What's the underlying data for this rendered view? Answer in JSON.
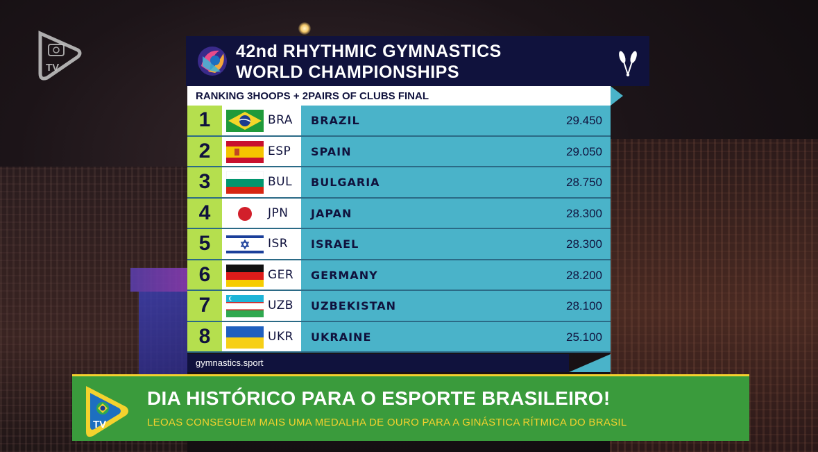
{
  "channel": {
    "logo_text": "TV"
  },
  "board": {
    "title_line1": "42nd RHYTHMIC GYMNASTICS",
    "title_line2": "WORLD CHAMPIONSHIPS",
    "subtitle": "RANKING 3HOOPS + 2PAIRS OF CLUBS FINAL",
    "footer": "gymnastics.sport",
    "rows": [
      {
        "rank": "1",
        "code": "BRA",
        "country": "BRAZIL",
        "score": "29.450",
        "flag": "flag-brazil"
      },
      {
        "rank": "2",
        "code": "ESP",
        "country": "SPAIN",
        "score": "29.050",
        "flag": "flag-spain"
      },
      {
        "rank": "3",
        "code": "BUL",
        "country": "BULGARIA",
        "score": "28.750",
        "flag": "flag-bulgaria"
      },
      {
        "rank": "4",
        "code": "JPN",
        "country": "JAPAN",
        "score": "28.300",
        "flag": "flag-japan"
      },
      {
        "rank": "5",
        "code": "ISR",
        "country": "ISRAEL",
        "score": "28.300",
        "flag": "flag-israel"
      },
      {
        "rank": "6",
        "code": "GER",
        "country": "GERMANY",
        "score": "28.200",
        "flag": "flag-germany"
      },
      {
        "rank": "7",
        "code": "UZB",
        "country": "UZBEKISTAN",
        "score": "28.100",
        "flag": "flag-uzbekistan"
      },
      {
        "rank": "8",
        "code": "UKR",
        "country": "UKRAINE",
        "score": "25.100",
        "flag": "flag-ukraine"
      }
    ]
  },
  "ticker": {
    "headline": "DIA HISTÓRICO PARA O ESPORTE BRASILEIRO!",
    "subline": "LEOAS CONSEGUEM MAIS UMA MEDALHA DE OURO PARA A GINÁSTICA RÍTMICA DO BRASIL",
    "logo_text": "TV"
  },
  "colors": {
    "header_navy": "#10123d",
    "rank_green": "#b5df4e",
    "row_cyan": "#4ab3c9",
    "ticker_green": "#3a9b3c",
    "ticker_yellow": "#f4d22e"
  }
}
